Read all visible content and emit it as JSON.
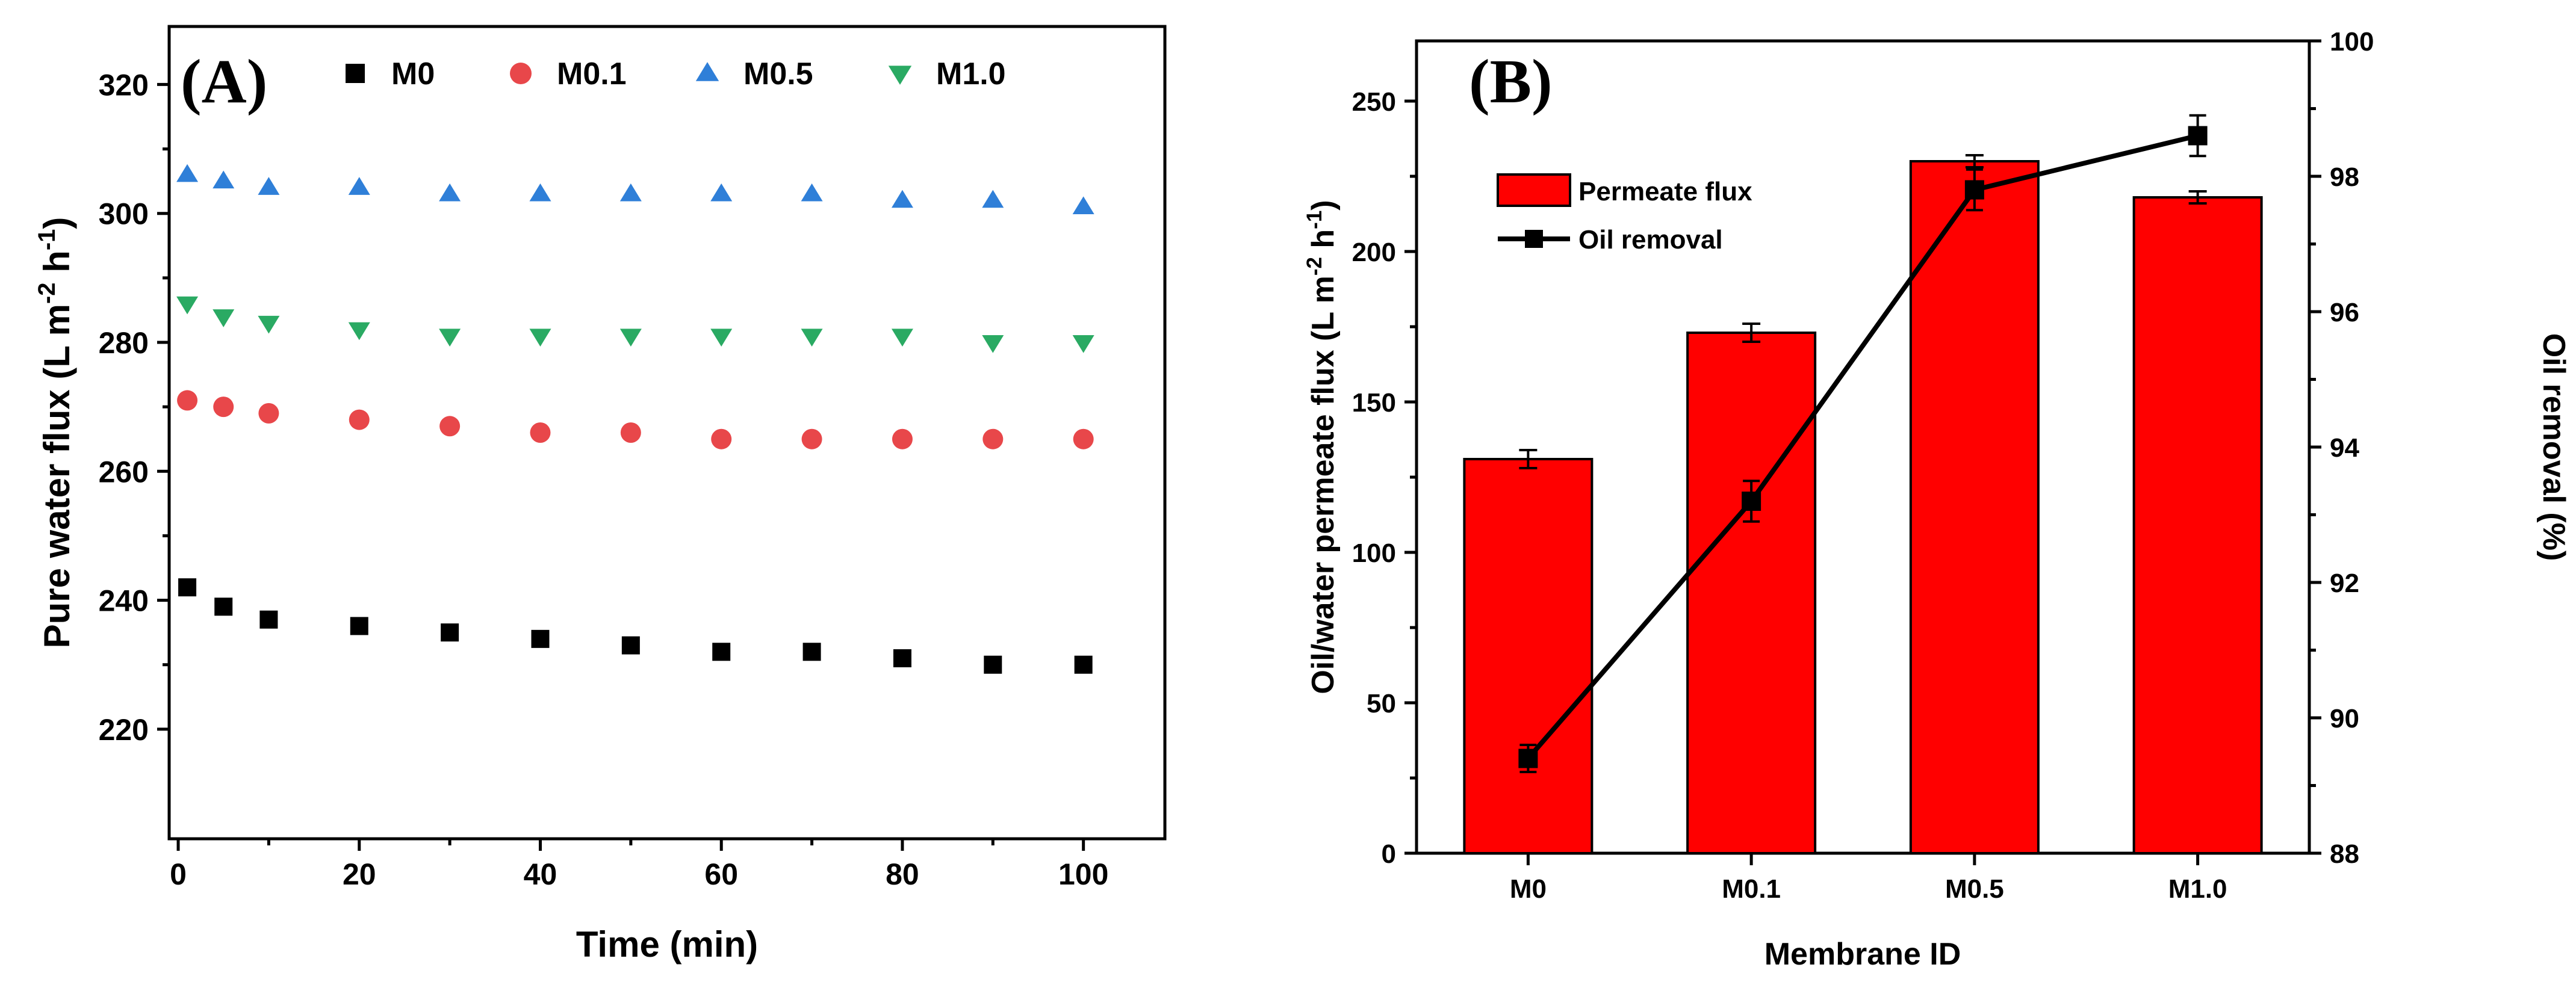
{
  "chart_data": [
    {
      "panel_label": "(A)",
      "type": "scatter",
      "xlabel": "Time (min)",
      "ylabel": "Pure water flux (L m",
      "ylabel_sup1": "-2",
      "ylabel_mid": " h",
      "ylabel_sup2": "-1",
      "ylabel_end": ")",
      "xlim": [
        -1,
        109
      ],
      "ylim": [
        203,
        329
      ],
      "xticks": [
        0,
        20,
        40,
        60,
        80,
        100
      ],
      "yticks": [
        220,
        240,
        260,
        280,
        300,
        320
      ],
      "grid": false,
      "legend_placement": "top",
      "x": [
        1,
        5,
        10,
        20,
        30,
        40,
        50,
        60,
        70,
        80,
        90,
        100
      ],
      "series": [
        {
          "name": "M0",
          "marker": "square",
          "color": "#000000",
          "values": [
            242,
            239,
            237,
            236,
            235,
            234,
            233,
            232,
            232,
            231,
            230,
            230
          ]
        },
        {
          "name": "M0.1",
          "marker": "circle",
          "color": "#e8474a",
          "values": [
            271,
            270,
            269,
            268,
            267,
            266,
            266,
            265,
            265,
            265,
            265,
            265
          ]
        },
        {
          "name": "M0.5",
          "marker": "triangle-up",
          "color": "#2f7fd8",
          "values": [
            306,
            305,
            304,
            304,
            303,
            303,
            303,
            303,
            303,
            302,
            302,
            301
          ]
        },
        {
          "name": "M1.0",
          "marker": "triangle-down",
          "color": "#2aaa63",
          "values": [
            286,
            284,
            283,
            282,
            281,
            281,
            281,
            281,
            281,
            281,
            280,
            280
          ]
        }
      ]
    },
    {
      "panel_label": "(B)",
      "type": "bar",
      "categories": [
        "M0",
        "M0.1",
        "M0.5",
        "M1.0"
      ],
      "xlabel": "Membrane ID",
      "ylabel": "Oil/water permeate flux (L m",
      "ylabel_sup1": "-2",
      "ylabel_mid": " h",
      "ylabel_sup2": "-1",
      "ylabel_end": ")",
      "ylim": [
        0,
        270
      ],
      "yticks": [
        0,
        50,
        100,
        150,
        200,
        250
      ],
      "y2label": "Oil removal (%)",
      "y2lim": [
        88,
        100
      ],
      "y2ticks": [
        88,
        90,
        92,
        94,
        96,
        98,
        100
      ],
      "grid": false,
      "legend_placement": "top-left",
      "bar_color": "#ff0000",
      "series": [
        {
          "name": "Permeate flux",
          "type": "bar",
          "axis": "left",
          "values": [
            131,
            173,
            230,
            218
          ],
          "errors": [
            3,
            3,
            2,
            2
          ]
        },
        {
          "name": "Oil removal",
          "type": "line",
          "axis": "right",
          "color": "#000000",
          "values": [
            89.4,
            93.2,
            97.8,
            98.6
          ],
          "errors": [
            0.2,
            0.3,
            0.3,
            0.3
          ]
        }
      ]
    }
  ]
}
